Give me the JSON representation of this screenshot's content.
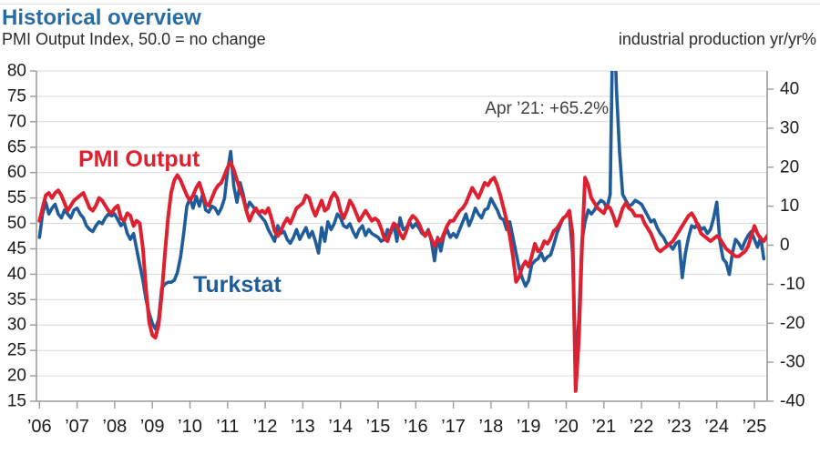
{
  "header": {
    "title": "Historical overview",
    "subtitle_left": "PMI Output Index, 50.0 = no change",
    "subtitle_right": "industrial production yr/yr%"
  },
  "annotation": {
    "text": "Apr ’21: +65.2%"
  },
  "series_labels": {
    "pmi": "PMI Output",
    "turkstat": "Turkstat"
  },
  "colors": {
    "title": "#2a6da4",
    "pmi_line": "#dd2130",
    "turkstat_line": "#1f5c99",
    "grid": "#d9d9d9",
    "axis": "#9b9b9b",
    "tick_text": "#1a1a1a",
    "annotation_text": "#404040"
  },
  "chart_data": {
    "type": "line",
    "title": "Historical overview",
    "subtitle": "PMI Output Index, 50.0 = no change",
    "x_start": "2006-01",
    "x_tick_labels": [
      "’06",
      "’07",
      "’08",
      "’09",
      "’10",
      "’11",
      "’12",
      "’13",
      "’14",
      "’15",
      "’16",
      "’17",
      "’18",
      "’19",
      "’20",
      "’21",
      "’22",
      "’23",
      "’24",
      "’25"
    ],
    "left_axis": {
      "label": "PMI Output Index",
      "min": 15,
      "max": 80,
      "ticks": [
        80,
        75,
        70,
        65,
        60,
        55,
        50,
        45,
        40,
        35,
        30,
        25,
        20,
        15
      ]
    },
    "right_axis": {
      "label": "industrial production yr/yr%",
      "min": -40,
      "max": 40,
      "ticks": [
        40,
        30,
        20,
        10,
        0,
        -10,
        -20,
        -30,
        -40
      ]
    },
    "grid": true,
    "legend_position": "inline-labels",
    "annotations": [
      {
        "text": "Apr ’21: +65.2%",
        "x": "2021-04",
        "value": 65.2,
        "series": "Turkstat"
      }
    ],
    "series": [
      {
        "name": "PMI Output",
        "axis": "left",
        "color": "#dd2130",
        "frequency": "monthly",
        "start": "2006-01",
        "values": [
          50.5,
          53,
          55.5,
          56,
          55,
          56,
          56.5,
          55.5,
          54,
          52.5,
          53.5,
          54.5,
          55,
          55.5,
          56,
          54.5,
          53,
          52.5,
          53.5,
          55,
          54.5,
          53.5,
          52.5,
          52,
          53,
          53.5,
          51,
          50.5,
          52,
          51.5,
          49.5,
          50.5,
          50,
          45,
          37,
          30.5,
          28,
          27.5,
          30,
          36,
          44,
          51,
          56,
          58.5,
          59.5,
          58.5,
          57,
          55.5,
          54.5,
          55.5,
          57,
          58,
          56,
          54,
          53.5,
          55,
          56.5,
          57.5,
          58,
          59.5,
          61,
          62,
          60.5,
          58.5,
          56.5,
          55,
          52.5,
          50.5,
          52,
          53,
          52,
          52.5,
          52,
          53,
          51,
          48.5,
          47.5,
          48.5,
          50,
          51,
          50,
          51.5,
          53,
          53.5,
          54,
          55.5,
          55,
          53,
          51.5,
          53,
          54.5,
          52.5,
          53,
          55,
          56,
          55,
          52.5,
          51,
          52.5,
          54.5,
          53.5,
          52,
          50.5,
          51.5,
          52.5,
          51.5,
          50.5,
          51,
          50.5,
          49,
          47,
          46.5,
          48.5,
          50,
          49.5,
          48,
          47,
          48.5,
          50.5,
          51.5,
          51,
          50,
          48.5,
          47.5,
          48.5,
          47,
          45.5,
          47,
          46.5,
          48,
          49.5,
          50.5,
          50.5,
          51.5,
          52.5,
          53,
          54,
          55.5,
          57,
          56,
          55,
          56.5,
          58,
          57.5,
          58.5,
          59,
          57.5,
          55.5,
          53,
          50.5,
          47.5,
          43.5,
          38.5,
          39.5,
          41.5,
          42.5,
          41.5,
          43.5,
          46,
          44.5,
          45,
          46.5,
          46,
          47,
          48.5,
          49,
          50,
          51,
          51.5,
          52.5,
          48,
          17,
          27,
          45,
          59,
          57.5,
          55,
          54,
          53,
          52.5,
          52,
          53.5,
          53,
          51.5,
          49.5,
          51,
          53,
          54,
          53,
          52.5,
          51.5,
          51.5,
          51.5,
          50,
          49,
          48,
          46.5,
          45,
          44.5,
          45,
          45.5,
          46,
          46.5,
          47.5,
          48.5,
          49.5,
          50.5,
          51.5,
          52,
          51,
          49.5,
          48,
          47.5,
          47,
          46.5,
          47,
          47.5,
          47,
          46,
          45,
          44.5,
          44,
          43.5,
          43.5,
          44,
          44.5,
          45.5,
          47.5,
          49.5,
          48,
          47,
          46.5,
          47.5
        ]
      },
      {
        "name": "Turkstat",
        "axis": "right",
        "color": "#1f5c99",
        "frequency": "monthly",
        "start": "2006-01",
        "values": [
          2,
          8,
          11,
          8,
          9.5,
          10.5,
          8,
          7,
          9,
          8,
          7,
          9,
          9.5,
          8,
          7,
          5,
          4,
          3.5,
          5,
          6,
          5.5,
          7,
          8,
          7.5,
          8,
          6.5,
          5,
          6,
          3,
          1.5,
          3,
          -1,
          -5,
          -9,
          -14,
          -17.5,
          -20,
          -21.5,
          -19,
          -11,
          -10,
          -9.5,
          -9.5,
          -9,
          -7,
          -3,
          3,
          10,
          12,
          9.5,
          12.5,
          10,
          13,
          9,
          8.5,
          10,
          9.5,
          8,
          9.5,
          12,
          19,
          24,
          15,
          11,
          16,
          13,
          9,
          11,
          10,
          9,
          8,
          7,
          6,
          4,
          2.5,
          1,
          5,
          3,
          3.5,
          1.5,
          0.5,
          2,
          4,
          1.5,
          3,
          4.5,
          2,
          3.5,
          1,
          -2,
          4.5,
          1,
          6,
          4,
          5.5,
          8,
          7,
          5,
          4.5,
          5.5,
          3.5,
          2,
          4,
          5,
          2.5,
          4,
          3,
          2.5,
          2,
          1,
          1.5,
          4,
          3,
          5.5,
          1,
          7,
          4,
          4.5,
          6,
          4.5,
          5.5,
          4.5,
          3,
          2.5,
          4,
          1,
          -4,
          2,
          -1.5,
          2.5,
          4,
          2,
          3,
          2,
          4,
          6,
          8,
          5,
          7,
          9.5,
          8,
          7,
          9,
          9.5,
          12,
          10.5,
          9,
          7,
          6.5,
          4,
          6,
          2,
          -2,
          -6,
          -8.5,
          -10.5,
          -9,
          -5,
          -4,
          -3.5,
          -2,
          -4,
          -3,
          -2.5,
          0,
          3,
          5,
          7,
          7.5,
          8,
          -2,
          -31,
          -19,
          1,
          6,
          9,
          8,
          9,
          10.5,
          11.5,
          11,
          9.5,
          13,
          65.2,
          40,
          24,
          13,
          11.5,
          10,
          10.5,
          11.5,
          11,
          10.5,
          9,
          7.5,
          6,
          6.5,
          4.5,
          3,
          2,
          0.5,
          0,
          -1,
          0.5,
          1,
          -8.3,
          -2,
          2,
          5,
          4.5,
          5.5,
          4,
          4.5,
          3,
          4,
          7,
          11,
          1,
          -3.5,
          -4.5,
          -7.5,
          -2,
          1.5,
          0.5,
          -1,
          1,
          2.5,
          3.5,
          1.5,
          -0.5,
          2,
          -3.5
        ]
      }
    ]
  }
}
